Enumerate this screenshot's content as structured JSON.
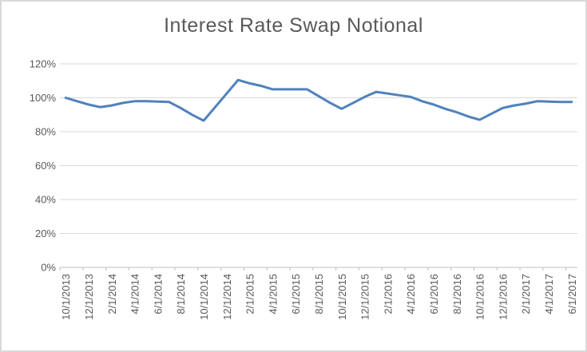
{
  "chart_data": {
    "type": "line",
    "title": "Interest Rate Swap Notional",
    "xlabel": "",
    "ylabel": "",
    "ylim": [
      0,
      120
    ],
    "y_tick_step": 20,
    "y_tick_labels": [
      "0%",
      "20%",
      "40%",
      "60%",
      "80%",
      "100%",
      "120%"
    ],
    "grid": "horizontal",
    "legend": "none",
    "x_axis_labels_shown": [
      "10/1/2013",
      "12/1/2013",
      "2/1/2014",
      "4/1/2014",
      "6/1/2014",
      "8/1/2014",
      "10/1/2014",
      "12/1/2014",
      "2/1/2015",
      "4/1/2015",
      "6/1/2015",
      "8/1/2015",
      "10/1/2015",
      "12/1/2015",
      "2/1/2016",
      "4/1/2016",
      "6/1/2016",
      "8/1/2016",
      "10/1/2016",
      "12/1/2016",
      "2/1/2017",
      "4/1/2017",
      "6/1/2017"
    ],
    "series": [
      {
        "name": "Interest Rate Swap Notional",
        "x": [
          "10/1/2013",
          "11/1/2013",
          "12/1/2013",
          "1/1/2014",
          "2/1/2014",
          "3/1/2014",
          "4/1/2014",
          "5/1/2014",
          "6/1/2014",
          "7/1/2014",
          "8/1/2014",
          "9/1/2014",
          "10/1/2014",
          "11/1/2014",
          "12/1/2014",
          "1/1/2015",
          "2/1/2015",
          "3/1/2015",
          "4/1/2015",
          "5/1/2015",
          "6/1/2015",
          "7/1/2015",
          "8/1/2015",
          "9/1/2015",
          "10/1/2015",
          "11/1/2015",
          "12/1/2015",
          "1/1/2016",
          "2/1/2016",
          "3/1/2016",
          "4/1/2016",
          "5/1/2016",
          "6/1/2016",
          "7/1/2016",
          "8/1/2016",
          "9/1/2016",
          "10/1/2016",
          "11/1/2016",
          "12/1/2016",
          "1/1/2017",
          "2/1/2017",
          "3/1/2017",
          "4/1/2017",
          "5/1/2017",
          "6/1/2017"
        ],
        "values": [
          100,
          98,
          96,
          94.5,
          95.5,
          97,
          98,
          98,
          97.8,
          97.5,
          94,
          90,
          86.5,
          94.5,
          102.5,
          110.5,
          108.5,
          107,
          105,
          105,
          105,
          105,
          101,
          97,
          93.5,
          97,
          100.5,
          103.5,
          102.5,
          101.5,
          100.5,
          98,
          96,
          93.5,
          91.5,
          89,
          87,
          90.5,
          94,
          95.5,
          96.5,
          98,
          97.8,
          97.5,
          97.5
        ]
      }
    ],
    "colors": {
      "line": "#4F81BD",
      "text": "#595959",
      "gridline": "#D9D9D9",
      "axis_line": "#BFBFBF",
      "chart_border": "#D9D9D9",
      "background": "#FFFFFF"
    }
  }
}
